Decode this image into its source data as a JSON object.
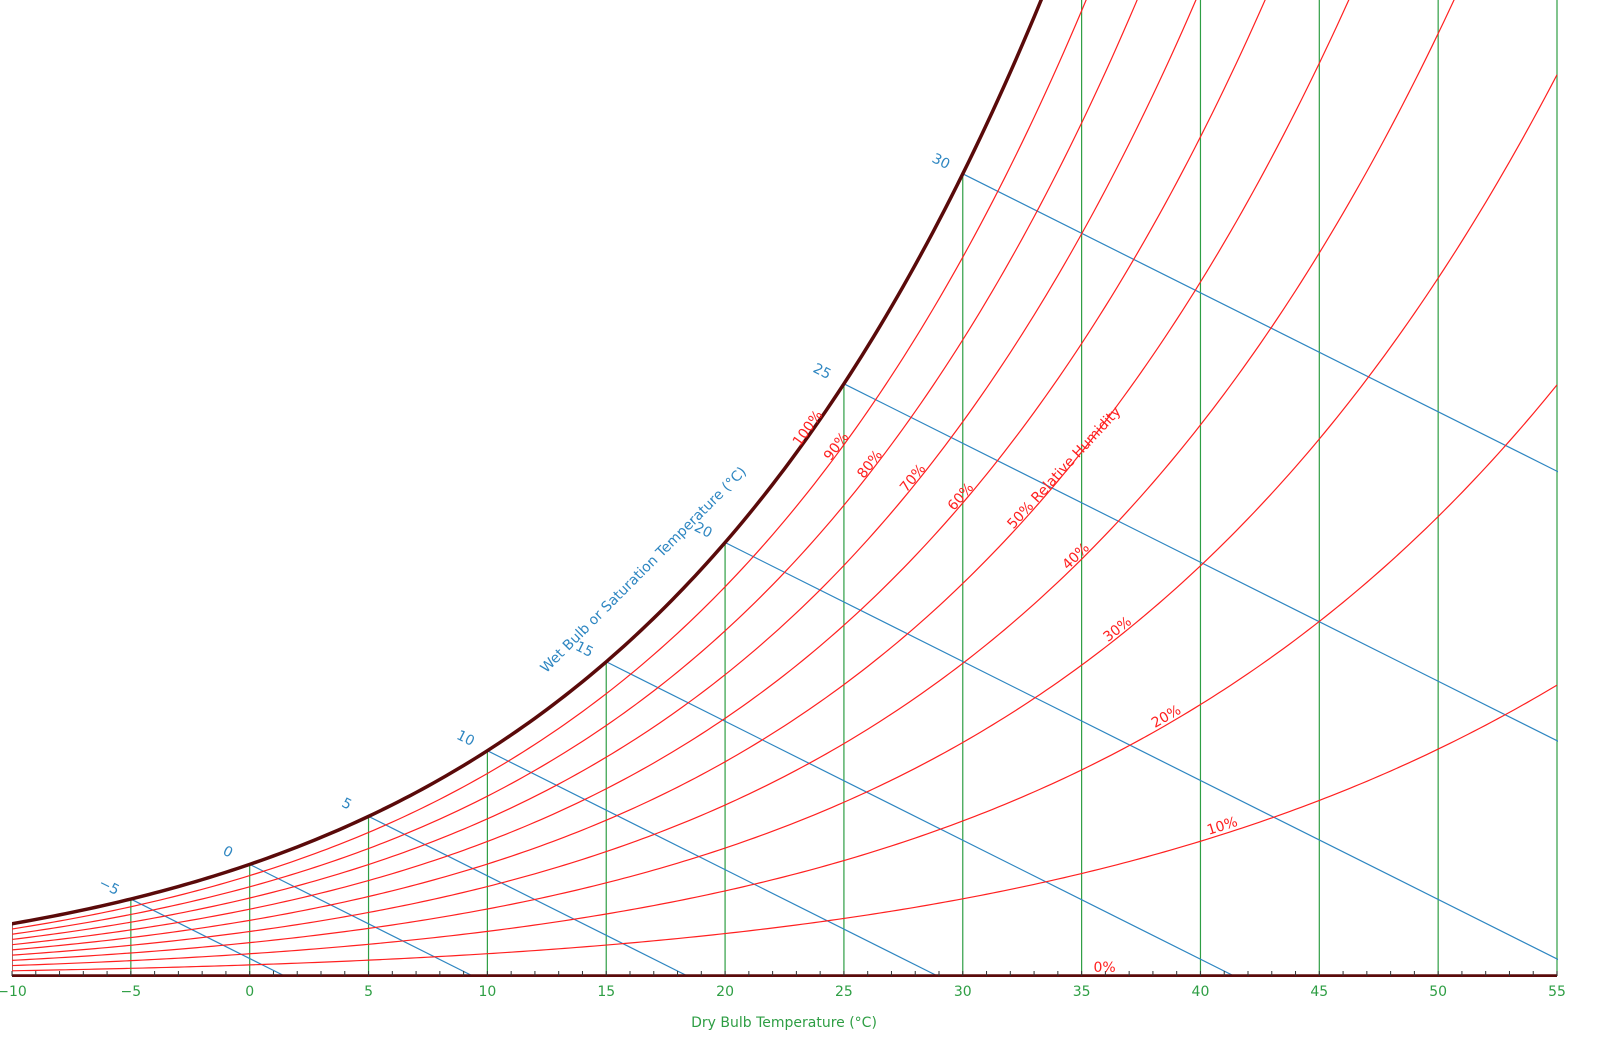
{
  "chart_data": {
    "type": "psychrometric",
    "xlabel": "Dry Bulb Temperature (°C)",
    "xlim": [
      -10,
      55
    ],
    "xticks": [
      {
        "value": -10,
        "label": "−10"
      },
      {
        "value": -5,
        "label": "−5"
      },
      0,
      5,
      10,
      15,
      20,
      25,
      30,
      35,
      40,
      45,
      50,
      55
    ],
    "minor_tick_step": 1,
    "ylim": [
      0,
      0.033
    ],
    "dry_bulb_color": "#2e9e44",
    "saturation_color": "#5a0a0a",
    "rh_curves": {
      "color": "#ff2020",
      "values": [
        0,
        10,
        20,
        30,
        40,
        50,
        60,
        70,
        80,
        90,
        100
      ],
      "value_labels": [
        "0%",
        "10%",
        "20%",
        "30%",
        "40%",
        "50% Relative Humidity",
        "60%",
        "70%",
        "80%",
        "90%",
        "100%"
      ]
    },
    "wet_bulb": {
      "label": "Wet Bulb or Saturation Temperature (°C)",
      "color": "#2e86c1",
      "values": [
        -5,
        0,
        5,
        10,
        15,
        20,
        25,
        30
      ],
      "value_labels": [
        "−5",
        "0",
        "5",
        "10",
        "15",
        "20",
        "25",
        "30"
      ]
    }
  }
}
